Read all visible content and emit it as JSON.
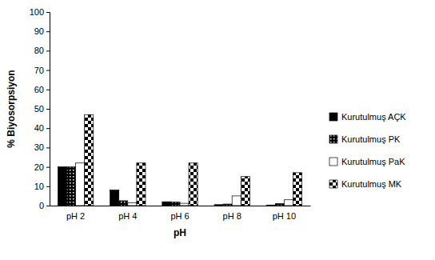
{
  "chart_data": {
    "type": "bar",
    "y_label": "% Biyosorpsiyon",
    "x_label": "pH",
    "categories": [
      "pH 2",
      "pH 4",
      "pH 6",
      "pH 8",
      "pH 10"
    ],
    "series": [
      {
        "name": "Kurutulmuş AÇK",
        "color": "#000000",
        "values": [
          20,
          8,
          2,
          0.5,
          0.3
        ]
      },
      {
        "name": "Kurutulmuş PK",
        "color": "#000000",
        "values": [
          20,
          2.5,
          1.8,
          0.8,
          1
        ]
      },
      {
        "name": "Kurutulmuş PaK",
        "color": "#ffffff",
        "values": [
          22,
          1.5,
          1.2,
          5,
          3
        ]
      },
      {
        "name": "Kurutulmuş MK",
        "color": "#000000",
        "values": [
          47,
          22,
          22,
          15,
          17
        ]
      }
    ],
    "ylim": [
      0,
      100
    ],
    "yticks": [
      0,
      10,
      20,
      30,
      40,
      50,
      60,
      70,
      80,
      90,
      100
    ],
    "grid": false,
    "legend": "right"
  }
}
